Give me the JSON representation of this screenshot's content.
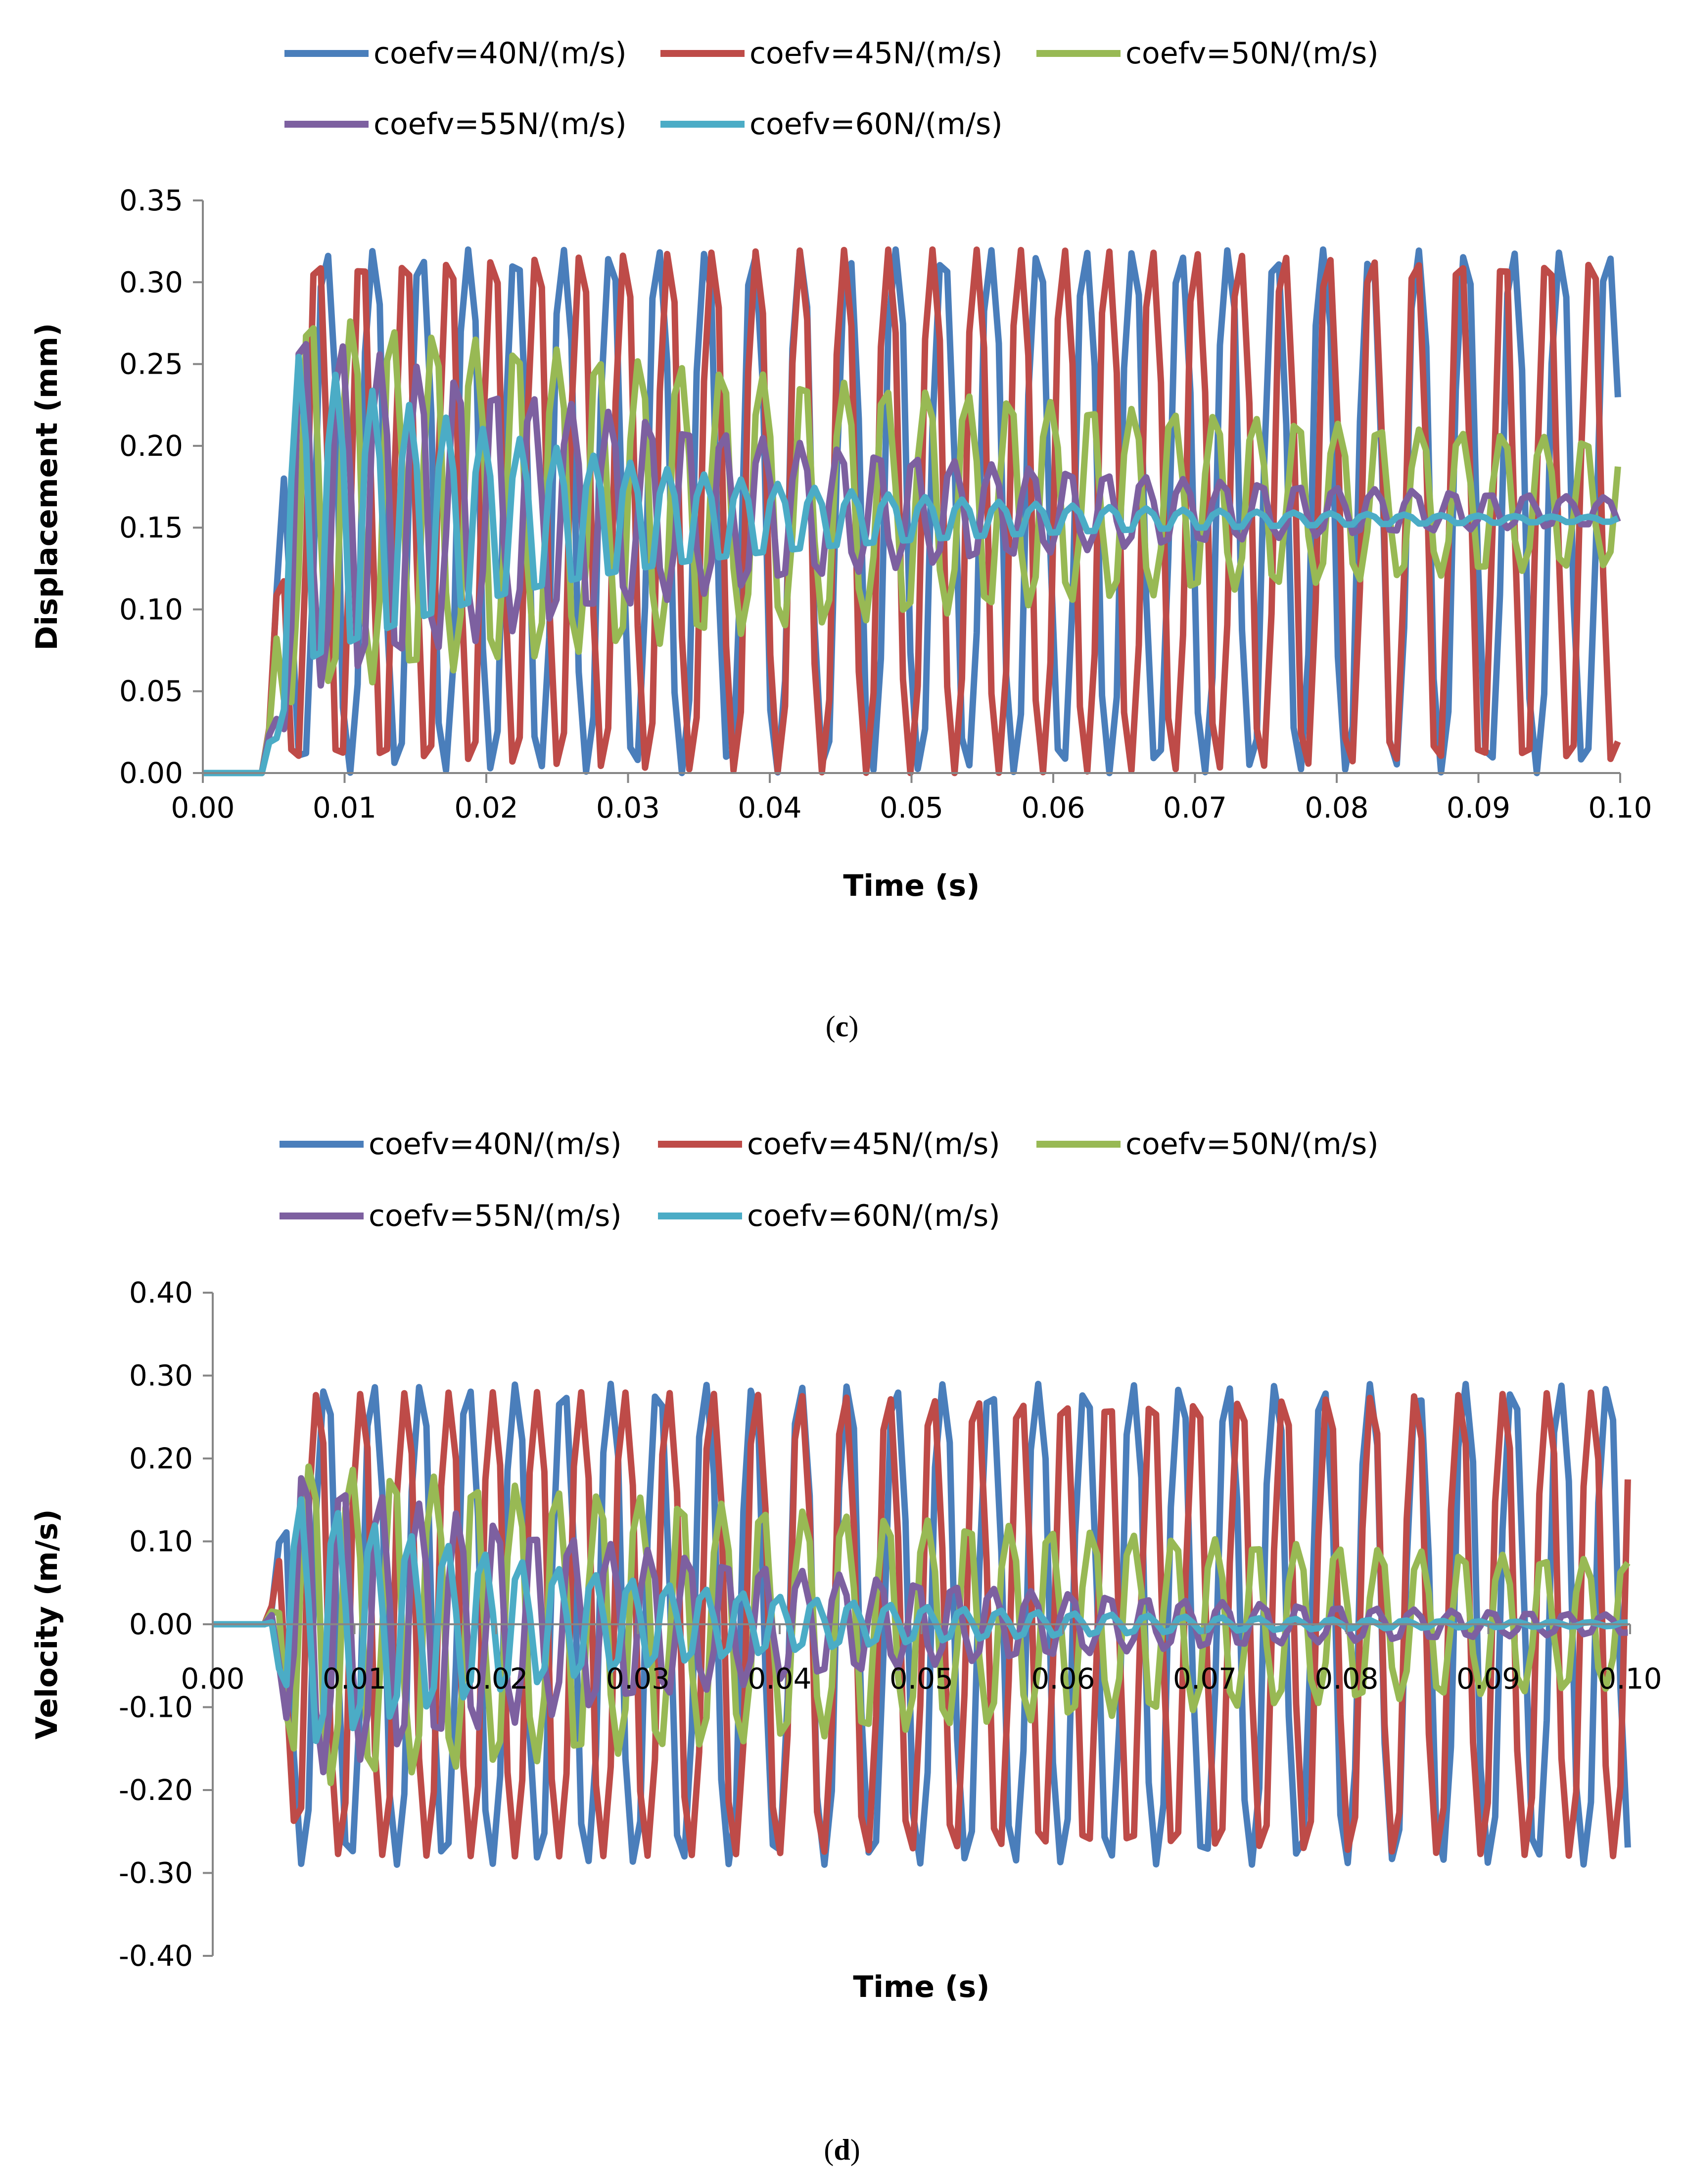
{
  "chart_data": [
    {
      "type": "line",
      "panel": "c",
      "title": "",
      "xlabel": "Time (s)",
      "ylabel": "Displacement  (mm)",
      "xlim": [
        0,
        0.1
      ],
      "ylim": [
        0,
        0.35
      ],
      "x_ticks": [
        0,
        0.01,
        0.02,
        0.03,
        0.04,
        0.05,
        0.06,
        0.07,
        0.08,
        0.09,
        0.1
      ],
      "x_tick_labels": [
        "0.00",
        "0.01",
        "0.02",
        "0.03",
        "0.04",
        "0.05",
        "0.06",
        "0.07",
        "0.08",
        "0.09",
        "0.10"
      ],
      "y_ticks": [
        0,
        0.05,
        0.1,
        0.15,
        0.2,
        0.25,
        0.3,
        0.35
      ],
      "y_tick_labels": [
        "0.00",
        "0.05",
        "0.10",
        "0.15",
        "0.20",
        "0.25",
        "0.30",
        "0.35"
      ],
      "legend_position": "top",
      "grid": false,
      "series": [
        {
          "name": "coefv=40N/(m/s)",
          "color": "#4a7ebb",
          "mean": 0.16,
          "amplitude": 0.16,
          "decay": 0.0,
          "period": 0.00335,
          "phase": 0.0
        },
        {
          "name": "coefv=45N/(m/s)",
          "color": "#be4b48",
          "mean": 0.16,
          "amplitude": 0.16,
          "decay": 0.0,
          "period": 0.0031,
          "phase": 0.6
        },
        {
          "name": "coefv=50N/(m/s)",
          "color": "#98b954",
          "mean": 0.165,
          "amplitude": 0.12,
          "decay": 12.0,
          "period": 0.0029,
          "phase": 1.2
        },
        {
          "name": "coefv=55N/(m/s)",
          "color": "#7d60a0",
          "mean": 0.16,
          "amplitude": 0.12,
          "decay": 28.0,
          "period": 0.0027,
          "phase": 1.9
        },
        {
          "name": "coefv=60N/(m/s)",
          "color": "#4bacc6",
          "mean": 0.155,
          "amplitude": 0.11,
          "decay": 45.0,
          "period": 0.0026,
          "phase": 2.4
        }
      ],
      "onset_time": 0.0045
    },
    {
      "type": "line",
      "panel": "d",
      "title": "",
      "xlabel": "Time (s)",
      "ylabel": "Velocity (m/s)",
      "xlim": [
        0,
        0.1
      ],
      "ylim": [
        -0.4,
        0.4
      ],
      "x_ticks": [
        0,
        0.01,
        0.02,
        0.03,
        0.04,
        0.05,
        0.06,
        0.07,
        0.08,
        0.09,
        0.1
      ],
      "x_tick_labels": [
        "0.00",
        "0.01",
        "0.02",
        "0.03",
        "0.04",
        "0.05",
        "0.06",
        "0.07",
        "0.08",
        "0.09",
        "0.10"
      ],
      "y_ticks": [
        -0.4,
        -0.3,
        -0.2,
        -0.1,
        0,
        0.1,
        0.2,
        0.3,
        0.4
      ],
      "y_tick_labels": [
        "-0.40",
        "-0.30",
        "-0.20",
        "-0.10",
        "0.00",
        "0.10",
        "0.20",
        "0.30",
        "0.40"
      ],
      "legend_position": "top",
      "grid": false,
      "series": [
        {
          "name": "coefv=40N/(m/s)",
          "color": "#4a7ebb",
          "mean": 0.0,
          "amplitude": 0.29,
          "decay": 0.0,
          "period": 0.00335,
          "phase": 0.4
        },
        {
          "name": "coefv=45N/(m/s)",
          "color": "#be4b48",
          "mean": 0.0,
          "amplitude": 0.28,
          "decay": 0.0,
          "period": 0.0031,
          "phase": 1.0
        },
        {
          "name": "coefv=50N/(m/s)",
          "color": "#98b954",
          "mean": 0.0,
          "amplitude": 0.2,
          "decay": 10.0,
          "period": 0.0029,
          "phase": 1.6
        },
        {
          "name": "coefv=55N/(m/s)",
          "color": "#7d60a0",
          "mean": 0.0,
          "amplitude": 0.2,
          "decay": 30.0,
          "period": 0.0027,
          "phase": 2.2
        },
        {
          "name": "coefv=60N/(m/s)",
          "color": "#4bacc6",
          "mean": 0.0,
          "amplitude": 0.17,
          "decay": 45.0,
          "period": 0.0026,
          "phase": 2.7
        }
      ],
      "onset_time": 0.004
    }
  ],
  "captions": {
    "c": {
      "open": "(",
      "letter": "c",
      "close": ")"
    },
    "d": {
      "open": "(",
      "letter": "d",
      "close": ")"
    }
  }
}
